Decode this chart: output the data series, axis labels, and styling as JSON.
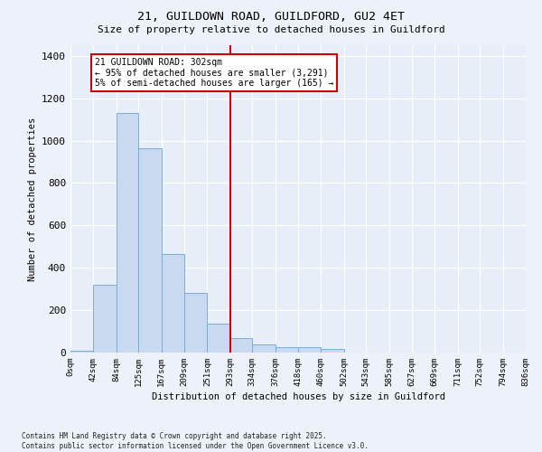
{
  "title_line1": "21, GUILDOWN ROAD, GUILDFORD, GU2 4ET",
  "title_line2": "Size of property relative to detached houses in Guildford",
  "xlabel": "Distribution of detached houses by size in Guildford",
  "ylabel": "Number of detached properties",
  "tick_labels": [
    "0sqm",
    "42sqm",
    "84sqm",
    "125sqm",
    "167sqm",
    "209sqm",
    "251sqm",
    "293sqm",
    "334sqm",
    "376sqm",
    "418sqm",
    "460sqm",
    "502sqm",
    "543sqm",
    "585sqm",
    "627sqm",
    "669sqm",
    "711sqm",
    "752sqm",
    "794sqm",
    "836sqm"
  ],
  "bins_left": [
    0,
    42,
    84,
    125,
    167,
    209,
    251,
    293,
    334,
    376,
    418,
    460,
    502,
    543,
    585,
    627,
    669,
    711,
    752,
    794
  ],
  "bins_right": [
    42,
    84,
    125,
    167,
    209,
    251,
    293,
    334,
    376,
    418,
    460,
    502,
    543,
    585,
    627,
    669,
    711,
    752,
    794,
    836
  ],
  "heights": [
    10,
    320,
    1130,
    965,
    465,
    280,
    135,
    70,
    38,
    25,
    25,
    18,
    0,
    0,
    0,
    0,
    0,
    0,
    0,
    0
  ],
  "vline_x": 293,
  "annotation_text": "21 GUILDOWN ROAD: 302sqm\n← 95% of detached houses are smaller (3,291)\n5% of semi-detached houses are larger (165) →",
  "bar_color": "#c9d9f0",
  "bar_edge_color": "#7aaed6",
  "vline_color": "#cc0000",
  "annot_edge_color": "#cc0000",
  "bg_color": "#e8eef8",
  "fig_bg_color": "#edf1fa",
  "grid_color": "#ffffff",
  "ylim": [
    0,
    1450
  ],
  "yticks": [
    0,
    200,
    400,
    600,
    800,
    1000,
    1200,
    1400
  ],
  "footer": "Contains HM Land Registry data © Crown copyright and database right 2025.\nContains public sector information licensed under the Open Government Licence v3.0."
}
